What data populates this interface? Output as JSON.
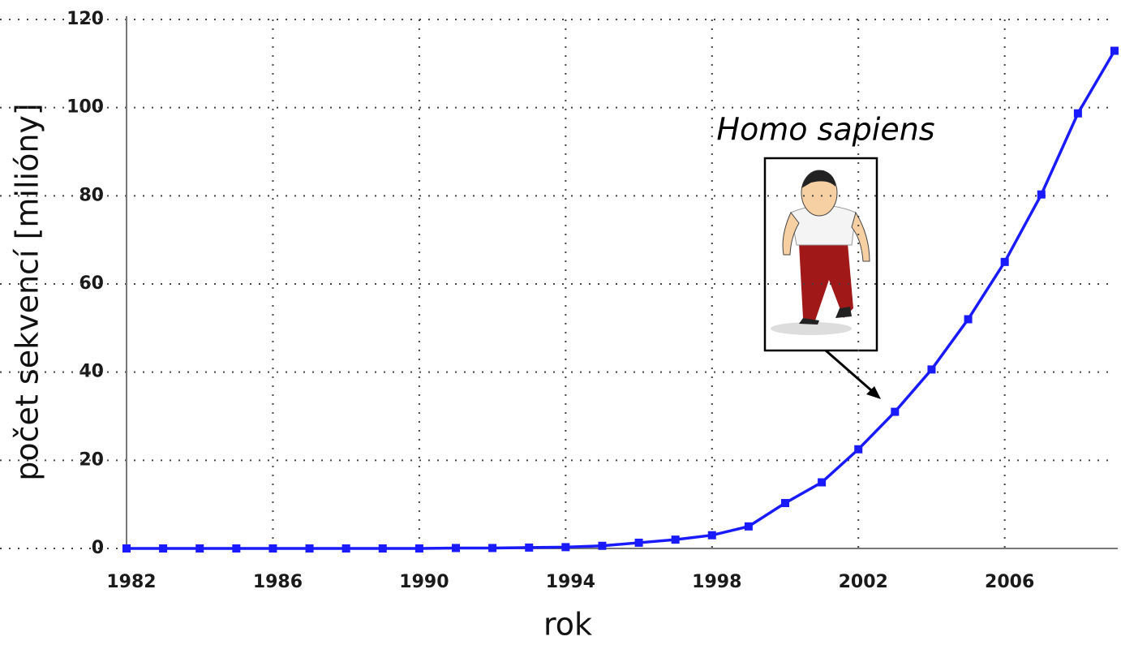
{
  "chart_data": {
    "type": "line",
    "x": [
      1982,
      1983,
      1984,
      1985,
      1986,
      1987,
      1988,
      1989,
      1990,
      1991,
      1992,
      1993,
      1994,
      1995,
      1996,
      1997,
      1998,
      1999,
      2000,
      2001,
      2002,
      2003,
      2004,
      2005,
      2006,
      2007,
      2008,
      2009
    ],
    "series": [
      {
        "color": "#1a1aff",
        "values": [
          0,
          0,
          0,
          0,
          0,
          0,
          0,
          0,
          0,
          0.1,
          0.1,
          0.2,
          0.3,
          0.6,
          1.3,
          2,
          3,
          5,
          10.3,
          15,
          22.5,
          31,
          40.6,
          52,
          65,
          80.3,
          98.7,
          112.9
        ]
      }
    ],
    "xlim": [
      1982,
      2009
    ],
    "xticks": [
      1982,
      1986,
      1990,
      1994,
      1998,
      2002,
      2006
    ],
    "ylim": [
      0,
      120
    ],
    "yticks": [
      0,
      20,
      40,
      60,
      80,
      100,
      120
    ],
    "xlabel": "rok",
    "ylabel": "počet sekvencí [milióny]",
    "annotation": "Homo sapiens",
    "grid": true
  }
}
